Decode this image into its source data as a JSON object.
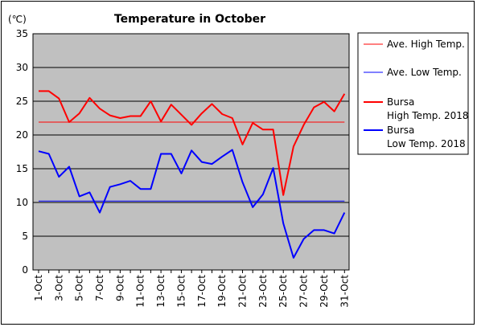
{
  "chart_data": {
    "type": "line",
    "title": "Temperature in October",
    "unit_label": "(℃)",
    "ylim": [
      0,
      35
    ],
    "yticks": [
      0,
      5,
      10,
      15,
      20,
      25,
      30,
      35
    ],
    "grid": true,
    "legend_position": "right",
    "categories": [
      "1-Oct",
      "2-Oct",
      "3-Oct",
      "4-Oct",
      "5-Oct",
      "6-Oct",
      "7-Oct",
      "8-Oct",
      "9-Oct",
      "10-Oct",
      "11-Oct",
      "12-Oct",
      "13-Oct",
      "14-Oct",
      "15-Oct",
      "16-Oct",
      "17-Oct",
      "18-Oct",
      "19-Oct",
      "20-Oct",
      "21-Oct",
      "22-Oct",
      "23-Oct",
      "24-Oct",
      "25-Oct",
      "26-Oct",
      "27-Oct",
      "28-Oct",
      "29-Oct",
      "30-Oct",
      "31-Oct"
    ],
    "xtick_labels": [
      "1-Oct",
      "3-Oct",
      "5-Oct",
      "7-Oct",
      "9-Oct",
      "11-Oct",
      "13-Oct",
      "15-Oct",
      "17-Oct",
      "19-Oct",
      "21-Oct",
      "23-Oct",
      "25-Oct",
      "27-Oct",
      "29-Oct",
      "31-Oct"
    ],
    "series": [
      {
        "name": "Ave. High Temp.",
        "color": "#ff0000",
        "style": "thin",
        "values": [
          21.9,
          21.9,
          21.9,
          21.9,
          21.9,
          21.9,
          21.9,
          21.9,
          21.9,
          21.9,
          21.9,
          21.9,
          21.9,
          21.9,
          21.9,
          21.9,
          21.9,
          21.9,
          21.9,
          21.9,
          21.9,
          21.9,
          21.9,
          21.9,
          21.9,
          21.9,
          21.9,
          21.9,
          21.9,
          21.9,
          21.9
        ]
      },
      {
        "name": "Ave. Low Temp.",
        "color": "#0000ff",
        "style": "thin",
        "values": [
          10.2,
          10.2,
          10.2,
          10.2,
          10.2,
          10.2,
          10.2,
          10.2,
          10.2,
          10.2,
          10.2,
          10.2,
          10.2,
          10.2,
          10.2,
          10.2,
          10.2,
          10.2,
          10.2,
          10.2,
          10.2,
          10.2,
          10.2,
          10.2,
          10.2,
          10.2,
          10.2,
          10.2,
          10.2,
          10.2,
          10.2
        ]
      },
      {
        "name": "Bursa\nHigh Temp. 2018",
        "legend_lines": [
          "Bursa",
          "High Temp. 2018"
        ],
        "color": "#ff0000",
        "style": "thick",
        "values": [
          26.5,
          26.5,
          25.4,
          21.9,
          23.2,
          25.5,
          23.9,
          22.9,
          22.5,
          22.8,
          22.8,
          25.0,
          22.0,
          24.5,
          23.0,
          21.5,
          23.2,
          24.6,
          23.1,
          22.5,
          18.6,
          21.8,
          20.8,
          20.8,
          11.1,
          18.3,
          21.5,
          24.1,
          24.9,
          23.5,
          26.1
        ]
      },
      {
        "name": "Bursa\nLow Temp. 2018",
        "legend_lines": [
          "Bursa",
          "Low Temp. 2018"
        ],
        "color": "#0000ff",
        "style": "thick",
        "values": [
          17.6,
          17.2,
          13.8,
          15.3,
          10.9,
          11.5,
          8.5,
          12.3,
          12.7,
          13.2,
          12.0,
          12.0,
          17.2,
          17.2,
          14.3,
          17.7,
          16.0,
          15.7,
          16.8,
          17.8,
          13.0,
          9.3,
          11.2,
          15.1,
          6.9,
          1.8,
          4.6,
          5.9,
          5.9,
          5.4,
          8.5
        ]
      }
    ]
  }
}
